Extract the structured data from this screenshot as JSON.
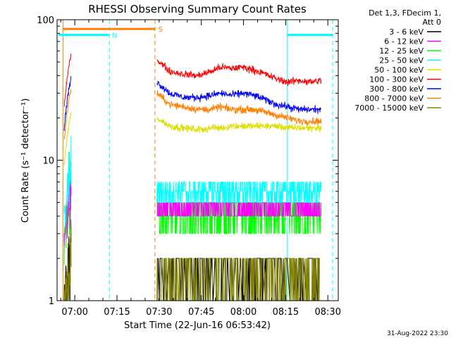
{
  "chart_data": {
    "type": "line",
    "title": "RHESSI Observing Summary Count Rates",
    "xlabel": "Start Time (22-Jun-16 06:53:42)",
    "ylabel": "Count Rate (s⁻¹ detector⁻¹)",
    "yscale": "log",
    "ylim": [
      1,
      100
    ],
    "xlim_minutes": [
      0,
      100
    ],
    "x_ticks": [
      {
        "label": "07:00",
        "minute": 6.3
      },
      {
        "label": "07:15",
        "minute": 21.3
      },
      {
        "label": "07:30",
        "minute": 36.3
      },
      {
        "label": "07:45",
        "minute": 51.3
      },
      {
        "label": "08:00",
        "minute": 66.3
      },
      {
        "label": "08:15",
        "minute": 81.3
      },
      {
        "label": "08:30",
        "minute": 96.3
      }
    ],
    "y_ticks": [
      {
        "label": "1",
        "value": 1
      },
      {
        "label": "10",
        "value": 10
      },
      {
        "label": "100",
        "value": 100
      }
    ],
    "legend": {
      "placement": "right",
      "header": [
        "Det 1,3, FDecim 1,",
        "Att 0"
      ],
      "entries": [
        {
          "label": "3 - 6 keV",
          "color": "#000000"
        },
        {
          "label": "6 - 12 keV",
          "color": "#ff00ff"
        },
        {
          "label": "12 - 25 keV",
          "color": "#00ff00"
        },
        {
          "label": "25 - 50 keV",
          "color": "#00ffff"
        },
        {
          "label": "50 - 100 keV",
          "color": "#dddd00"
        },
        {
          "label": "100 - 300 keV",
          "color": "#ff0000"
        },
        {
          "label": "300 - 800 keV",
          "color": "#0000ff"
        },
        {
          "label": "800 - 7000 keV",
          "color": "#ff8000"
        },
        {
          "label": "7000 - 15000 keV",
          "color": "#808000"
        }
      ]
    },
    "series": [
      {
        "label": "100 - 300 keV",
        "color": "#ff0000",
        "points": [
          [
            35.5,
            52
          ],
          [
            40,
            43
          ],
          [
            45,
            41
          ],
          [
            50,
            40
          ],
          [
            55,
            43
          ],
          [
            58,
            46
          ],
          [
            62,
            45
          ],
          [
            66,
            46
          ],
          [
            70,
            44
          ],
          [
            74,
            41
          ],
          [
            78,
            38
          ],
          [
            82,
            36
          ],
          [
            86,
            37
          ],
          [
            90,
            36
          ],
          [
            94,
            37
          ]
        ]
      },
      {
        "label": "300 - 800 keV",
        "color": "#0000ff",
        "points": [
          [
            35.5,
            36
          ],
          [
            40,
            30
          ],
          [
            45,
            28
          ],
          [
            50,
            28
          ],
          [
            55,
            29
          ],
          [
            58,
            30
          ],
          [
            62,
            29
          ],
          [
            66,
            30
          ],
          [
            70,
            29
          ],
          [
            74,
            27
          ],
          [
            78,
            25
          ],
          [
            82,
            24
          ],
          [
            86,
            23
          ],
          [
            90,
            23
          ],
          [
            94,
            23
          ]
        ]
      },
      {
        "label": "800 - 7000 keV",
        "color": "#ff8000",
        "points": [
          [
            35.5,
            30
          ],
          [
            40,
            25
          ],
          [
            45,
            24
          ],
          [
            50,
            23
          ],
          [
            55,
            23
          ],
          [
            58,
            24
          ],
          [
            62,
            23
          ],
          [
            66,
            23
          ],
          [
            70,
            23
          ],
          [
            74,
            22
          ],
          [
            78,
            21
          ],
          [
            82,
            20
          ],
          [
            86,
            19
          ],
          [
            90,
            19
          ],
          [
            94,
            19
          ]
        ]
      },
      {
        "label": "50 - 100 keV",
        "color": "#dddd00",
        "points": [
          [
            35.5,
            20
          ],
          [
            40,
            17.5
          ],
          [
            45,
            17
          ],
          [
            50,
            16.5
          ],
          [
            55,
            17
          ],
          [
            58,
            17
          ],
          [
            62,
            17.5
          ],
          [
            66,
            17.5
          ],
          [
            70,
            17.5
          ],
          [
            74,
            17.5
          ],
          [
            78,
            17.5
          ],
          [
            82,
            17
          ],
          [
            86,
            17
          ],
          [
            90,
            17
          ],
          [
            94,
            17
          ]
        ]
      },
      {
        "label": "25 - 50 keV",
        "color": "#00ffff",
        "points": [
          [
            35.5,
            5.5
          ],
          [
            94,
            5.5
          ]
        ]
      },
      {
        "label": "12 - 25 keV",
        "color": "#00ff00",
        "points": [
          [
            35.5,
            4
          ],
          [
            94,
            4
          ]
        ]
      },
      {
        "label": "6 - 12 keV",
        "color": "#ff00ff",
        "points": [
          [
            35.5,
            4.7
          ],
          [
            94,
            4.7
          ]
        ]
      },
      {
        "label": "7000 - 15000 keV",
        "color": "#808000",
        "points": [
          [
            35.5,
            1.5
          ],
          [
            94,
            1.5
          ]
        ]
      },
      {
        "label": "3 - 6 keV",
        "color": "#000000",
        "points": [
          [
            35.5,
            1.2
          ],
          [
            94,
            1.2
          ]
        ]
      }
    ],
    "early_segment_minutes": [
      2.5,
      5.0
    ],
    "flag_bars": [
      {
        "label": "S",
        "color": "#ff8000",
        "y_value": 86,
        "x_start": 2.2,
        "x_end": 35.0
      },
      {
        "label": "N",
        "color": "#00ffff",
        "y_value": 78,
        "x_start": 0.5,
        "x_end": 18.5
      },
      {
        "label": "",
        "color": "#00ffff",
        "y_value": 78,
        "x_start": 82.0,
        "x_end": 98.0
      }
    ],
    "vlines": [
      {
        "minute": 2.1,
        "color": "#ff8000",
        "style": "solid"
      },
      {
        "minute": 18.6,
        "color": "#00ffff",
        "style": "dashed"
      },
      {
        "minute": 34.8,
        "color": "#ff8000",
        "style": "dashed"
      },
      {
        "minute": 81.9,
        "color": "#00ffff",
        "style": "solid"
      },
      {
        "minute": 98.0,
        "color": "#00ffff",
        "style": "dashed"
      }
    ]
  },
  "footer": {
    "timestamp": "31-Aug-2022 23:30"
  }
}
